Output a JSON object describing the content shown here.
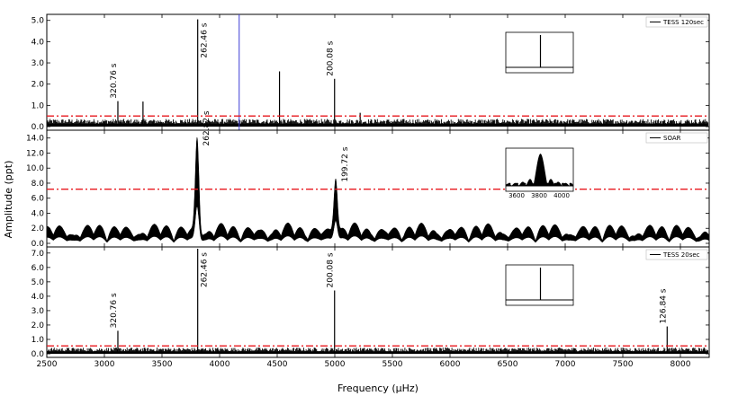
{
  "chart_data": {
    "type": "line",
    "xlabel": "Frequency (μHz)",
    "ylabel": "Amplitude (ppt)",
    "xlim": [
      2500,
      8250
    ],
    "x_ticks": [
      2500,
      3000,
      3500,
      4000,
      4500,
      5000,
      5500,
      6000,
      6500,
      7000,
      7500,
      8000
    ],
    "panels": [
      {
        "legend": "TESS 120sec",
        "ylim": [
          0,
          5.2
        ],
        "y_ticks": [
          0.0,
          1.0,
          2.0,
          3.0,
          4.0,
          5.0
        ],
        "y_tick_labels": [
          "0.0",
          "1.0",
          "2.0",
          "3.0",
          "4.0",
          "5.0"
        ],
        "threshold": 0.5,
        "noise_level": 0.25,
        "marker_line_x": 4170,
        "peaks": [
          {
            "x": 3117,
            "y": 1.2,
            "label": "320.76 s"
          },
          {
            "x": 3335,
            "y": 1.18,
            "label": ""
          },
          {
            "x": 3810,
            "y": 5.05,
            "label": "262.46 s"
          },
          {
            "x": 4520,
            "y": 2.6,
            "label": ""
          },
          {
            "x": 4998,
            "y": 2.25,
            "label": "200.08 s"
          },
          {
            "x": 5220,
            "y": 0.65,
            "label": ""
          }
        ],
        "inset": {
          "type": "window",
          "ticks": []
        }
      },
      {
        "legend": "SOAR",
        "ylim": [
          0,
          14.8
        ],
        "y_ticks": [
          0.0,
          2.0,
          4.0,
          6.0,
          8.0,
          10.0,
          12.0,
          14.0
        ],
        "y_tick_labels": [
          "0.0",
          "2.0",
          "4.0",
          "6.0",
          "8.0",
          "10.0",
          "12.0",
          "14.0"
        ],
        "threshold": 7.2,
        "peaks": [
          {
            "x": 3805,
            "y": 12.6,
            "label": "262.82 s"
          },
          {
            "x": 5007,
            "y": 7.8,
            "label": "199.72 s"
          }
        ],
        "inset": {
          "type": "window",
          "ticks": [
            "3600",
            "3800",
            "4000"
          ]
        }
      },
      {
        "legend": "TESS 20sec",
        "ylim": [
          0,
          7.3
        ],
        "y_ticks": [
          0.0,
          1.0,
          2.0,
          3.0,
          4.0,
          5.0,
          6.0,
          7.0
        ],
        "y_tick_labels": [
          "0.0",
          "1.0",
          "2.0",
          "3.0",
          "4.0",
          "5.0",
          "6.0",
          "7.0"
        ],
        "threshold": 0.55,
        "noise_level": 0.3,
        "peaks": [
          {
            "x": 3117,
            "y": 1.6,
            "label": "320.76 s"
          },
          {
            "x": 3810,
            "y": 7.3,
            "label": "262.46 s"
          },
          {
            "x": 4998,
            "y": 4.4,
            "label": "200.08 s"
          },
          {
            "x": 7885,
            "y": 1.9,
            "label": "126.84 s"
          }
        ],
        "inset": {
          "type": "window",
          "ticks": []
        }
      }
    ],
    "colors": {
      "data": "#000000",
      "threshold": "#e8181e",
      "marker_line": "#3b3bd6"
    }
  }
}
